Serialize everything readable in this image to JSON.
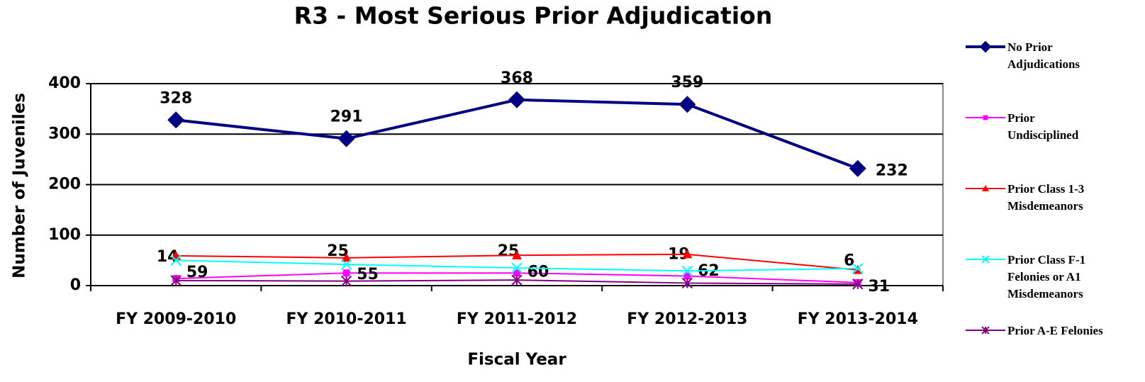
{
  "chart_data": {
    "type": "line",
    "title": "R3 - Most Serious Prior Adjudication",
    "x_label": "Fiscal Year",
    "y_label": "Number of Juveniles",
    "categories": [
      "FY 2009-2010",
      "FY 2010-2011",
      "FY 2011-2012",
      "FY 2012-2013",
      "FY 2013-2014"
    ],
    "ylim": [
      0,
      400
    ],
    "yticks": [
      0,
      100,
      200,
      300,
      400
    ],
    "grid": true,
    "legend": "right",
    "series": [
      {
        "name": "No Prior Adjudications",
        "color": "#000080",
        "marker": "diamond",
        "data_labels": true,
        "values": [
          328,
          291,
          368,
          359,
          232
        ]
      },
      {
        "name": "Prior Undisciplined",
        "color": "#ff00ff",
        "marker": "square",
        "data_labels": true,
        "values": [
          14,
          25,
          25,
          19,
          6
        ]
      },
      {
        "name": "Prior Class 1-3 Misdemeanors",
        "color": "#ff0000",
        "marker": "triangle",
        "data_labels": true,
        "values": [
          59,
          55,
          60,
          62,
          31
        ]
      },
      {
        "name": "Prior Class F-1 Felonies or A1 Misdemeanors",
        "color": "#00ffff",
        "marker": "x",
        "data_labels": false,
        "values": [
          50,
          42,
          35,
          29,
          34
        ]
      },
      {
        "name": "Prior A-E Felonies",
        "color": "#800080",
        "marker": "star",
        "data_labels": false,
        "values": [
          10,
          9,
          11,
          5,
          3
        ]
      }
    ]
  }
}
